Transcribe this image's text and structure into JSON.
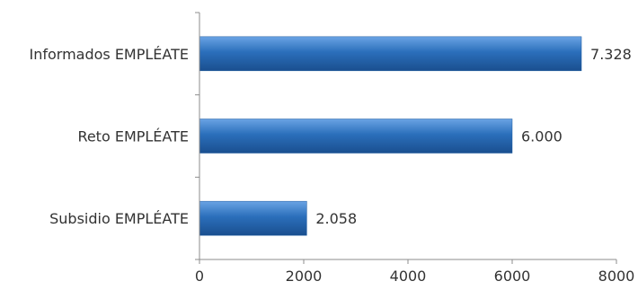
{
  "chart_data": {
    "type": "bar",
    "orientation": "horizontal",
    "categories": [
      "Informados EMPLÉATE",
      "Reto EMPLÉATE",
      "Subsidio EMPLÉATE"
    ],
    "values": [
      7328,
      6000,
      2058
    ],
    "data_labels": [
      "7.328",
      "6.000",
      "2.058"
    ],
    "xlim": [
      0,
      8000
    ],
    "x_ticks": [
      0,
      2000,
      4000,
      6000,
      8000
    ],
    "x_tick_labels": [
      "0",
      "2000",
      "4000",
      "6000",
      "8000"
    ],
    "grid": false,
    "legend": "none",
    "bar_color": "#2b6fbb"
  }
}
